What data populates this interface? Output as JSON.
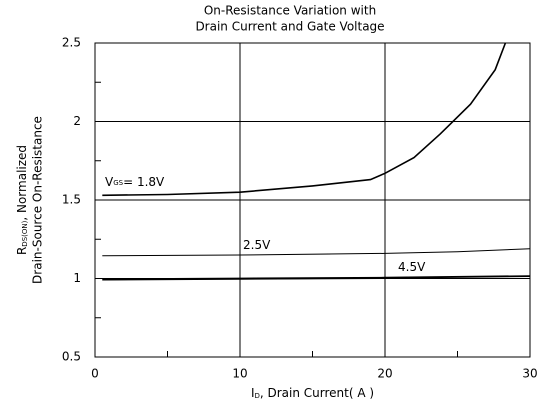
{
  "chart_data": {
    "type": "line",
    "title": [
      "On-Resistance Variation with",
      "Drain Current and Gate Voltage"
    ],
    "x_label": {
      "symbol": "I",
      "sub": "D",
      "rest": ", Drain Current( A )"
    },
    "y_label": {
      "symbol": "R",
      "sub": "DS(ON)",
      "rest": ", Normalized",
      "line2": "Drain-Source On-Resistance"
    },
    "series_label_prefix": {
      "symbol": "V",
      "sub": "GS",
      "sep": "= "
    },
    "xlim": [
      0,
      30
    ],
    "ylim": [
      0.5,
      2.5
    ],
    "xticks": [
      0,
      10,
      20,
      30
    ],
    "yticks": [
      0.5,
      1,
      1.5,
      2,
      2.5
    ],
    "x_minor_ticks": [
      5,
      15,
      25
    ],
    "y_minor_ticks": [
      0.75,
      1.25,
      1.75,
      2.25
    ],
    "grid": true,
    "color": "#000000",
    "series": [
      {
        "name": "1.8V",
        "x": [
          0.5,
          5,
          10,
          15,
          19,
          20,
          22,
          23.8,
          25.9,
          27.6,
          28.3
        ],
        "values": [
          1.53,
          1.535,
          1.55,
          1.59,
          1.63,
          1.67,
          1.77,
          1.92,
          2.11,
          2.33,
          2.5
        ]
      },
      {
        "name": "2.5V",
        "x": [
          0.5,
          10,
          20,
          25,
          30
        ],
        "values": [
          1.145,
          1.15,
          1.16,
          1.17,
          1.19
        ]
      },
      {
        "name": "4.5V",
        "x": [
          0.5,
          10,
          20,
          30
        ],
        "values": [
          0.995,
          1.0,
          1.005,
          1.015
        ]
      },
      {
        "x": [
          0.5,
          10,
          20,
          30
        ],
        "values": [
          0.99,
          0.995,
          1.0,
          1.0
        ]
      }
    ]
  }
}
